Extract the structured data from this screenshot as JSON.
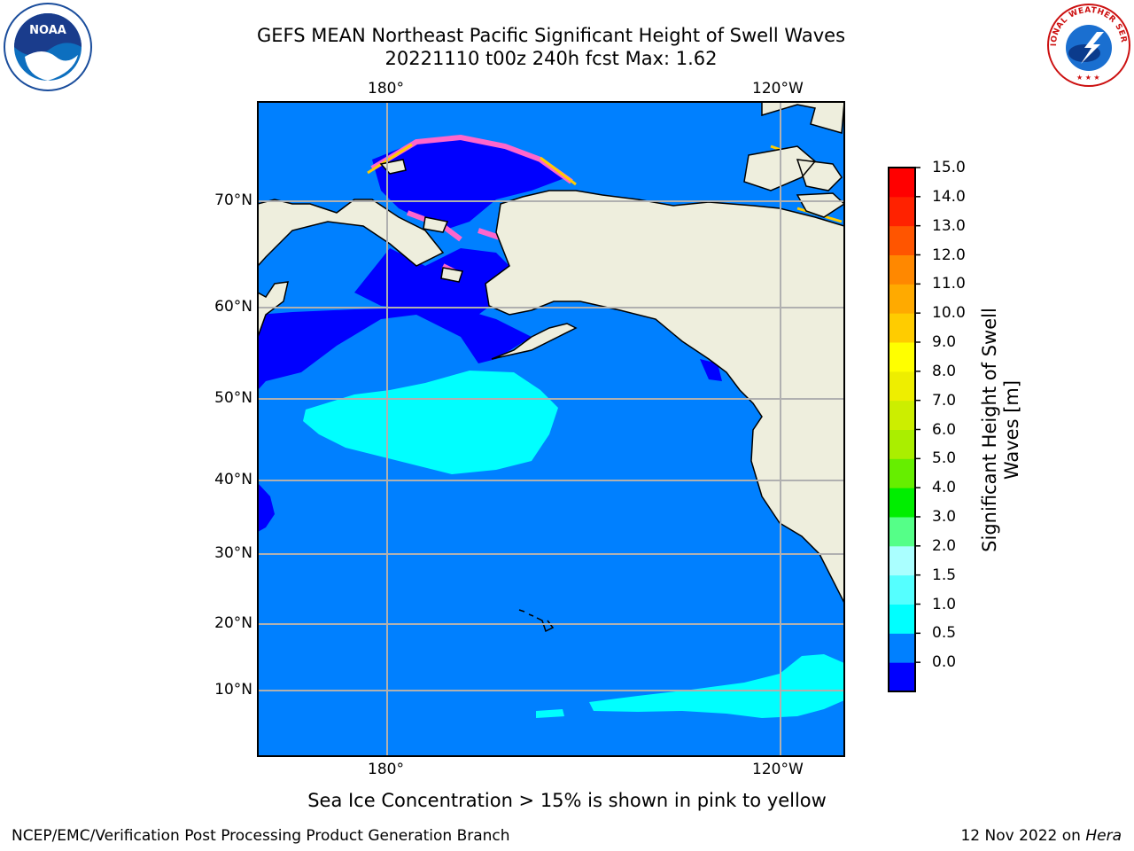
{
  "title": {
    "line1": "GEFS MEAN Northeast Pacific Significant Height of Swell Waves",
    "line2": "20221110 t00z 240h fcst   Max: 1.62"
  },
  "map": {
    "lon_labels": [
      "180°",
      "120°W"
    ],
    "lat_labels": [
      "70°N",
      "60°N",
      "50°N",
      "40°N",
      "30°N",
      "20°N",
      "10°N"
    ],
    "colors": {
      "ocean_base": "#0080ff",
      "low_swell": "#0000ff",
      "mid_swell": "#00ffff",
      "land": "#eeeedd",
      "sea_ice_edge": "#ff66cc",
      "sea_ice_yellow": "#ffcc00",
      "grid": "#b0b0b0",
      "coast": "#000000"
    }
  },
  "colorbar": {
    "ticks": [
      "15.0",
      "14.0",
      "13.0",
      "12.0",
      "11.0",
      "10.0",
      "9.0",
      "8.0",
      "7.0",
      "6.0",
      "5.0",
      "4.0",
      "3.0",
      "2.0",
      "1.5",
      "1.0",
      "0.5",
      "0.0"
    ],
    "colors_bottom_to_top": [
      "#0000ff",
      "#0080ff",
      "#00ffff",
      "#55ffff",
      "#aaffff",
      "#55ff88",
      "#00ee00",
      "#66ee00",
      "#aaee00",
      "#ccee00",
      "#eeee00",
      "#ffff00",
      "#ffcc00",
      "#ffaa00",
      "#ff8800",
      "#ff5500",
      "#ff2200",
      "#ff0000"
    ],
    "label": "Significant Height of Swell Waves [m]"
  },
  "logos": {
    "noaa_text": "NOAA",
    "nws_text": "NATIONAL WEATHER SERVICE"
  },
  "footnote": "Sea Ice Concentration > 15% is shown in pink to yellow",
  "credit": "NCEP/EMC/Verification Post Processing Product Generation Branch",
  "date": {
    "text": "12 Nov 2022 on ",
    "host": "Hera"
  }
}
